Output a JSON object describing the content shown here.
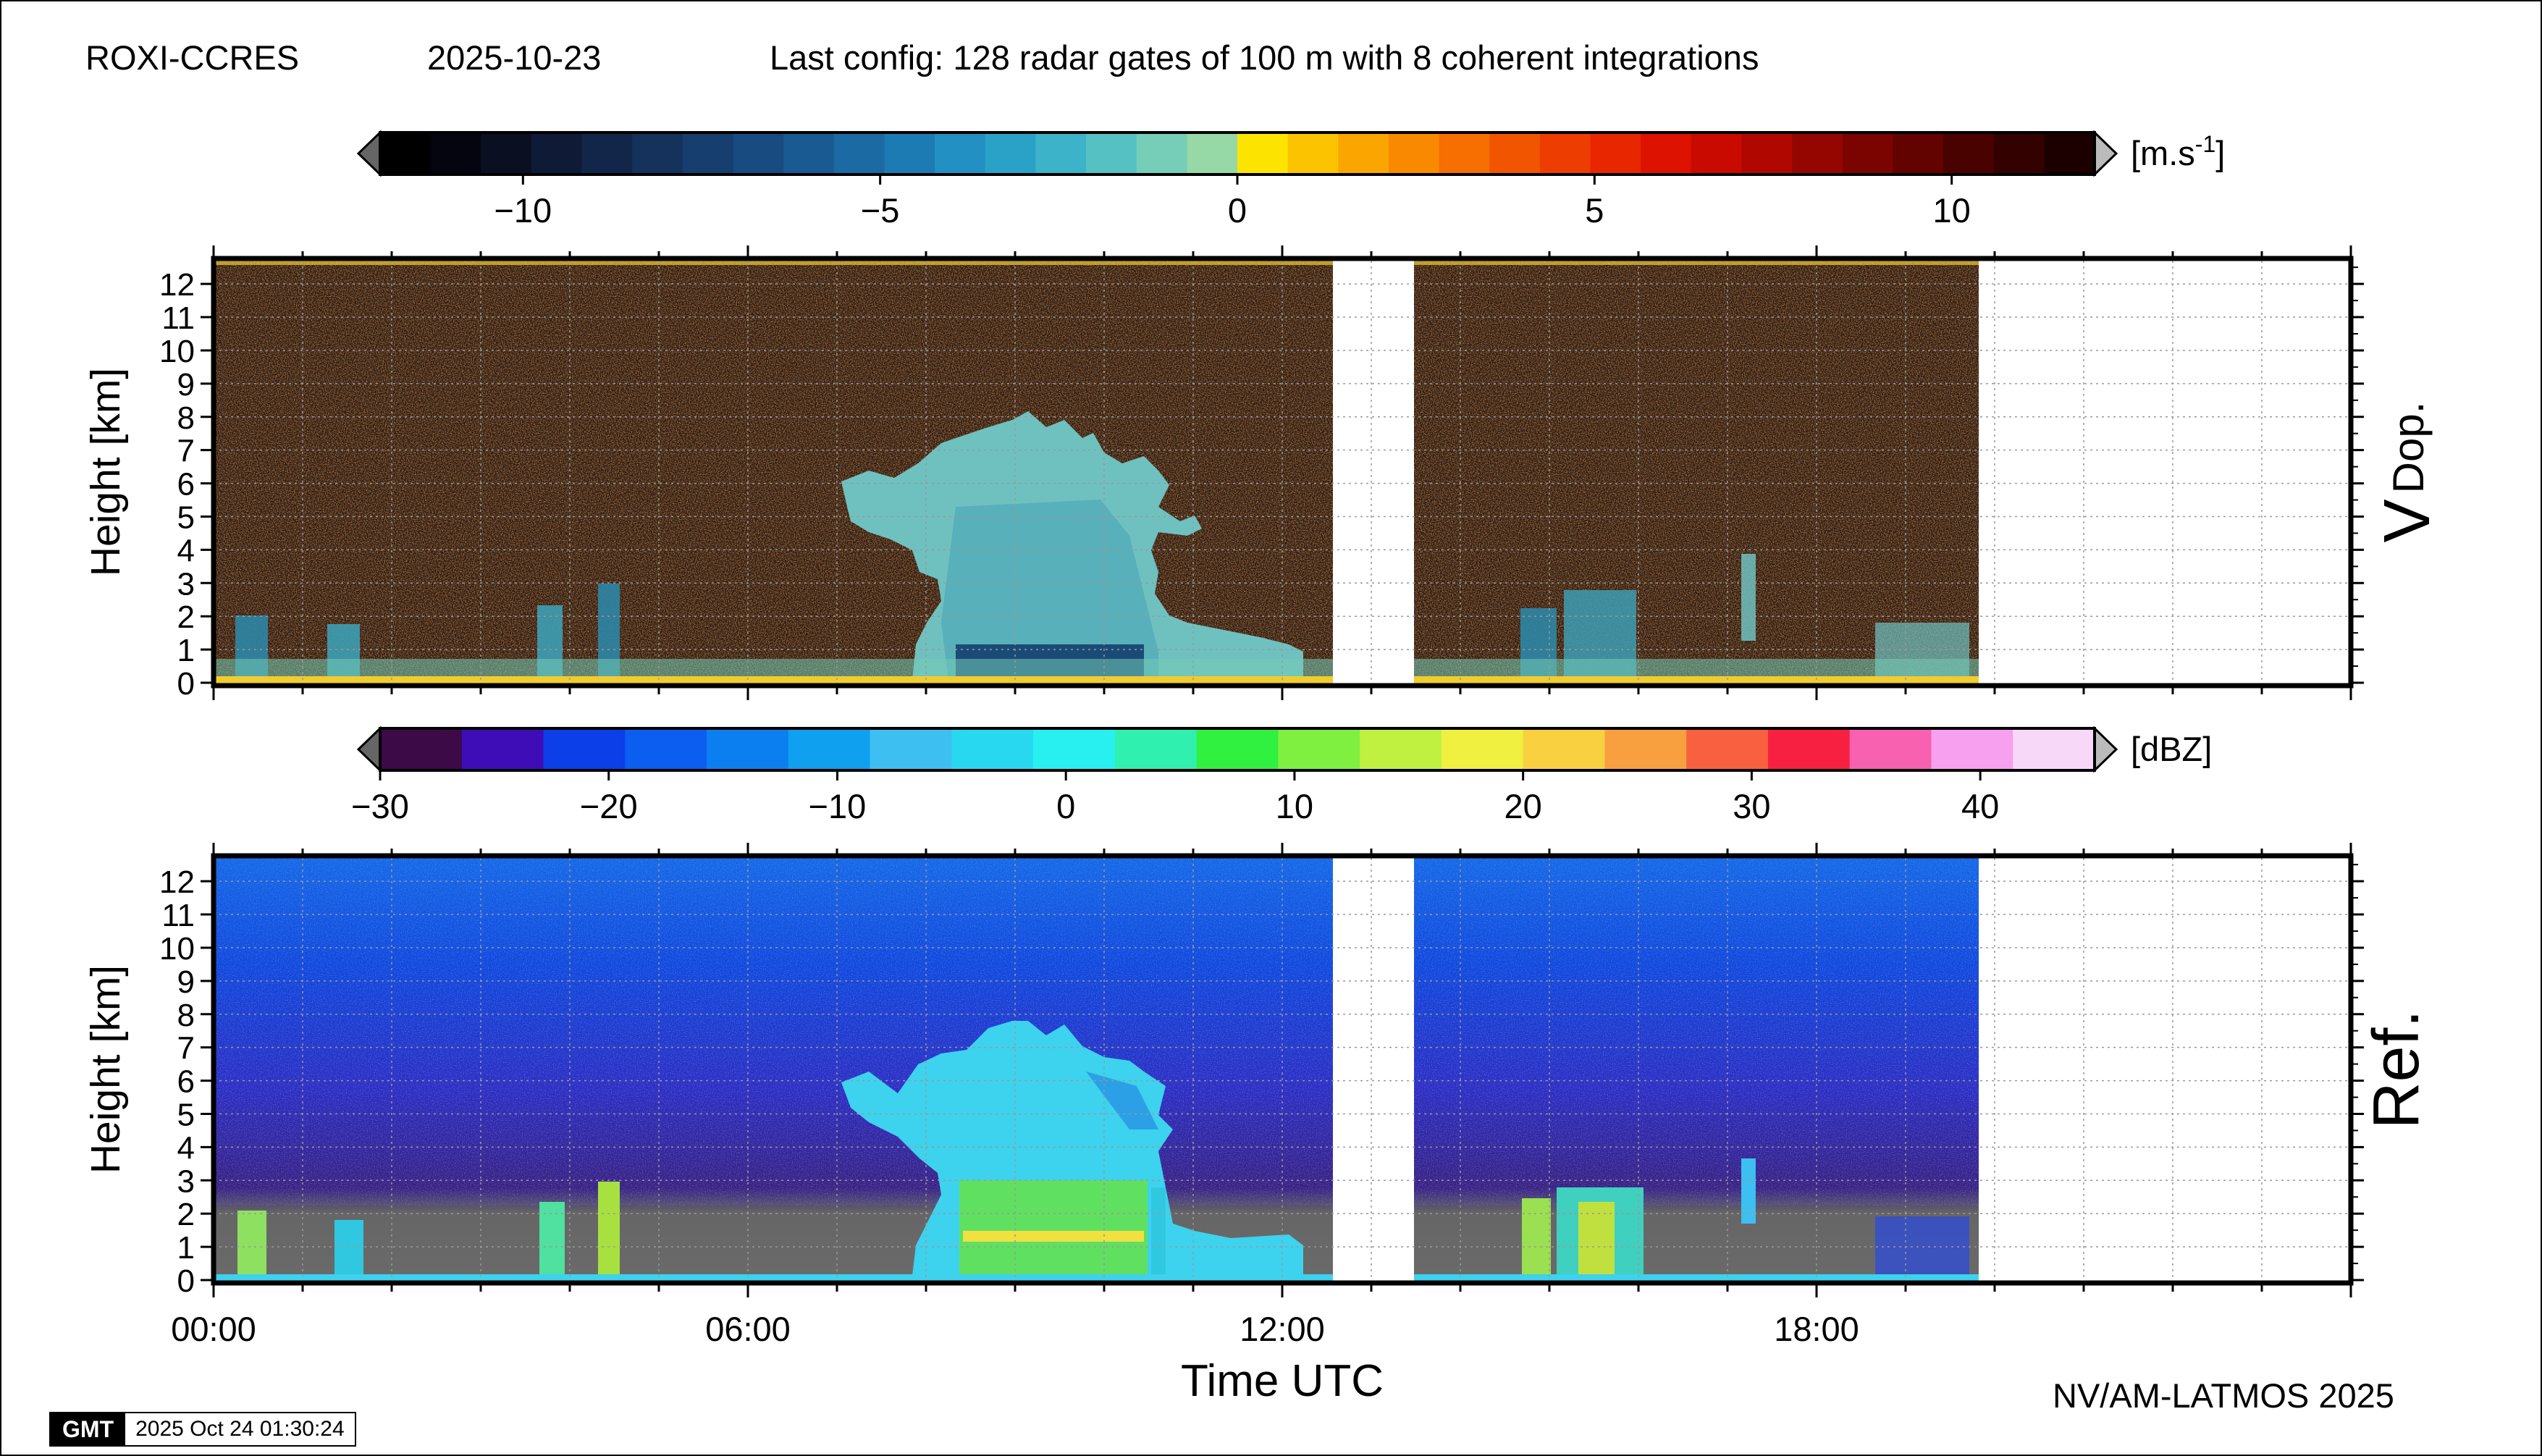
{
  "header": {
    "site": "ROXI-CCRES",
    "date": "2025-10-23",
    "config": "Last config: 128 radar gates of 100 m with 8 coherent integrations"
  },
  "footer": {
    "credit": "NV/AM-LATMOS 2025",
    "gmt_logo": "GMT",
    "timestamp": "2025 Oct 24 01:30:24"
  },
  "chart_data": [
    {
      "type": "heatmap",
      "id": "doppler",
      "panel_label": "V",
      "panel_label_sub": "Dop.",
      "ylabel": "Height [km]",
      "xlabel": "",
      "x_ticks": [
        "00:00",
        "06:00",
        "12:00",
        "18:00"
      ],
      "x_range_hours": [
        0,
        24
      ],
      "y_range_km": [
        0,
        12.7
      ],
      "y_ticks": [
        0,
        1,
        2,
        3,
        4,
        5,
        6,
        7,
        8,
        9,
        10,
        11,
        12
      ],
      "data_gaps_hours": [
        [
          12.6,
          13.5
        ],
        [
          19.9,
          24
        ]
      ],
      "grid": true,
      "colorbar": {
        "unit": "[m.s",
        "unit_sup": "-1",
        "unit_close": "]",
        "range": [
          -12,
          12
        ],
        "ticks": [
          -10,
          -5,
          0,
          5,
          10
        ],
        "tick_labels": [
          "−10",
          "−5",
          "0",
          "5",
          "10"
        ],
        "colors": [
          "#000000",
          "#050510",
          "#0a0f22",
          "#0e1a36",
          "#12264a",
          "#15325c",
          "#163e6e",
          "#184b80",
          "#195a92",
          "#1b6aa4",
          "#1d7bb4",
          "#2290c2",
          "#2aa2c8",
          "#3cb3c8",
          "#55c1c3",
          "#76cdb8",
          "#96d9a7",
          "#fde400",
          "#fcc400",
          "#fba600",
          "#f98a00",
          "#f66f00",
          "#f25500",
          "#ee3d00",
          "#e82600",
          "#de1200",
          "#c80a00",
          "#b00800",
          "#960600",
          "#7c0400",
          "#620300",
          "#4a0200",
          "#330100",
          "#1c0000"
        ]
      }
    },
    {
      "type": "heatmap",
      "id": "reflectivity",
      "panel_label": "Ref.",
      "ylabel": "Height [km]",
      "xlabel": "Time UTC",
      "x_ticks": [
        "00:00",
        "06:00",
        "12:00",
        "18:00"
      ],
      "x_range_hours": [
        0,
        24
      ],
      "y_range_km": [
        0,
        12.7
      ],
      "y_ticks": [
        0,
        1,
        2,
        3,
        4,
        5,
        6,
        7,
        8,
        9,
        10,
        11,
        12
      ],
      "data_gaps_hours": [
        [
          12.6,
          13.5
        ],
        [
          19.9,
          24
        ]
      ],
      "grid": true,
      "colorbar": {
        "unit": "[dBZ]",
        "range": [
          -30,
          45
        ],
        "ticks": [
          -30,
          -20,
          -10,
          0,
          10,
          20,
          30,
          40
        ],
        "tick_labels": [
          "−30",
          "−20",
          "−10",
          "0",
          "10",
          "20",
          "30",
          "40"
        ],
        "colors": [
          "#3d0a48",
          "#3e0db8",
          "#0c3fe8",
          "#0b5ef0",
          "#0c7ff0",
          "#0fa0f0",
          "#3dbff2",
          "#28d8f0",
          "#28f0f0",
          "#30f0b0",
          "#30f040",
          "#80f040",
          "#c0f040",
          "#f0f040",
          "#f8d040",
          "#f8a040",
          "#f86040",
          "#f82040",
          "#f860b0",
          "#f8a0f0",
          "#f8d8f8"
        ]
      }
    }
  ]
}
